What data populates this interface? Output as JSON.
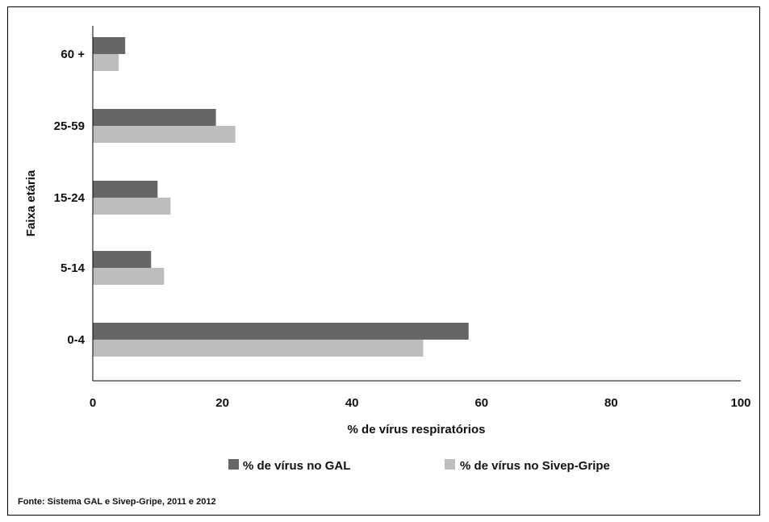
{
  "chart_data": {
    "type": "bar",
    "orientation": "horizontal",
    "categories": [
      "60 +",
      "25-59",
      "15-24",
      "5-14",
      "0-4"
    ],
    "series": [
      {
        "name": "% de vírus no GAL",
        "color": "#666666",
        "values": [
          5,
          19,
          10,
          9,
          58
        ]
      },
      {
        "name": "% de vírus no Sivep-Gripe",
        "color": "#bdbdbd",
        "values": [
          4,
          22,
          12,
          11,
          51
        ]
      }
    ],
    "xlabel": "% de vírus respiratórios",
    "ylabel": "Faixa etária",
    "xlim": [
      0,
      100
    ],
    "xticks": [
      "0",
      "20",
      "40",
      "60",
      "80",
      "100"
    ],
    "grid": false,
    "legend_position": "bottom"
  },
  "source": "Fonte: Sistema GAL e Sivep-Gripe, 2011 e 2012"
}
